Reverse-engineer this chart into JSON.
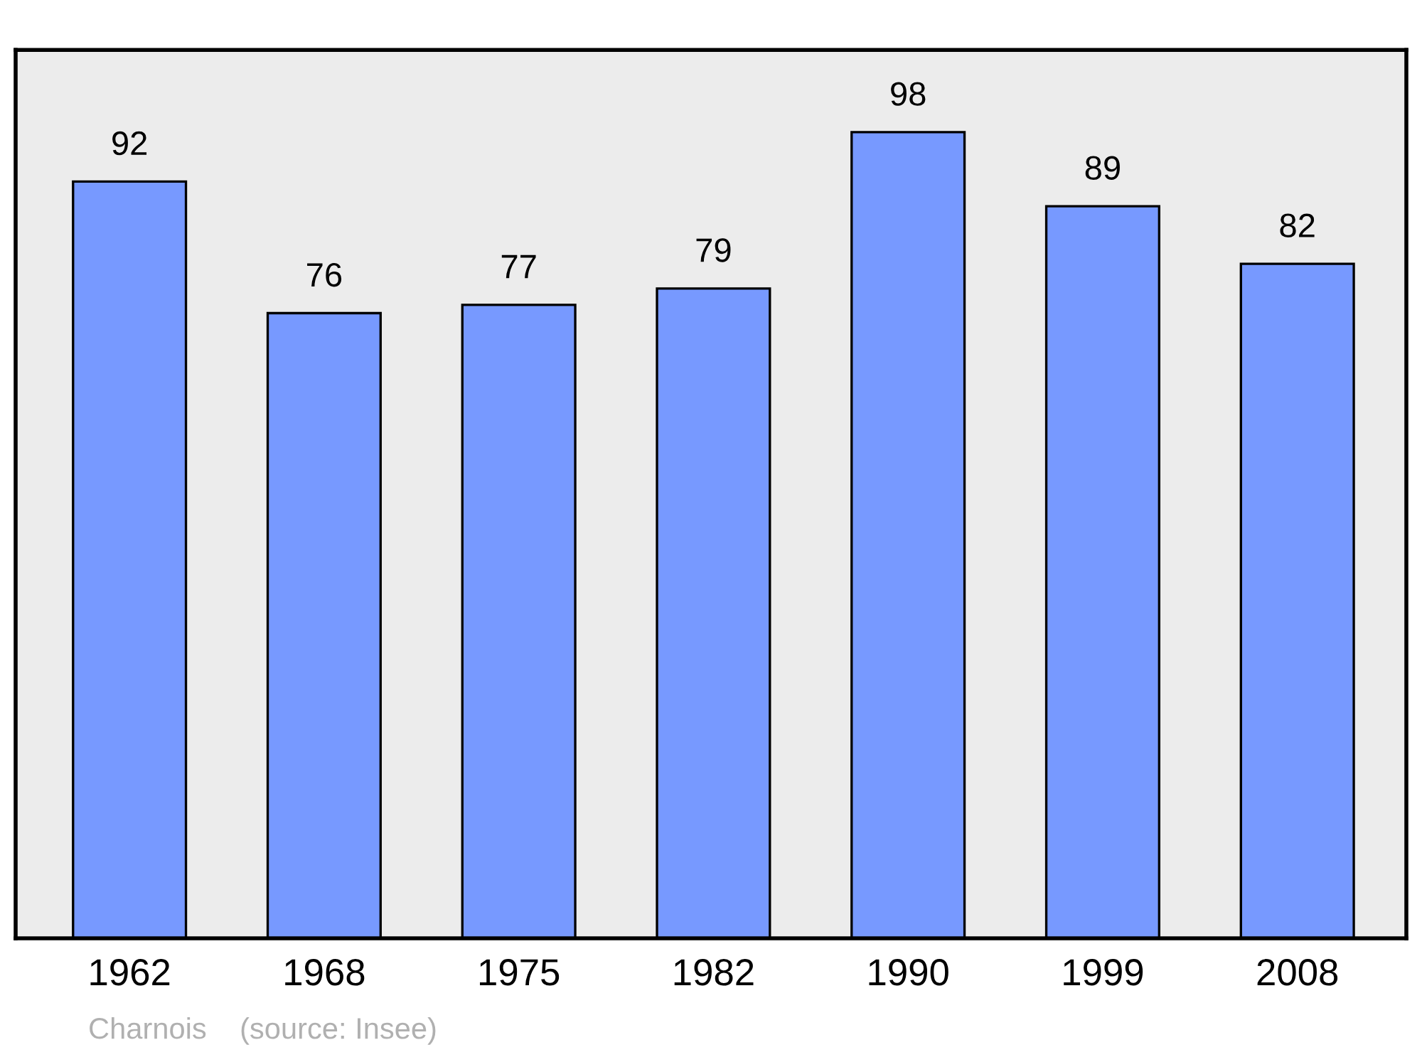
{
  "chart_data": {
    "type": "bar",
    "categories": [
      "1962",
      "1968",
      "1975",
      "1982",
      "1990",
      "1999",
      "2008"
    ],
    "values": [
      92,
      76,
      77,
      79,
      98,
      89,
      82
    ],
    "color": "#7799ff",
    "ylim": [
      0,
      108
    ],
    "data_labels": true,
    "grid": false,
    "legend": false,
    "tick_labels": "x",
    "annotations": [
      "Charnois    (source: Insee)"
    ]
  }
}
